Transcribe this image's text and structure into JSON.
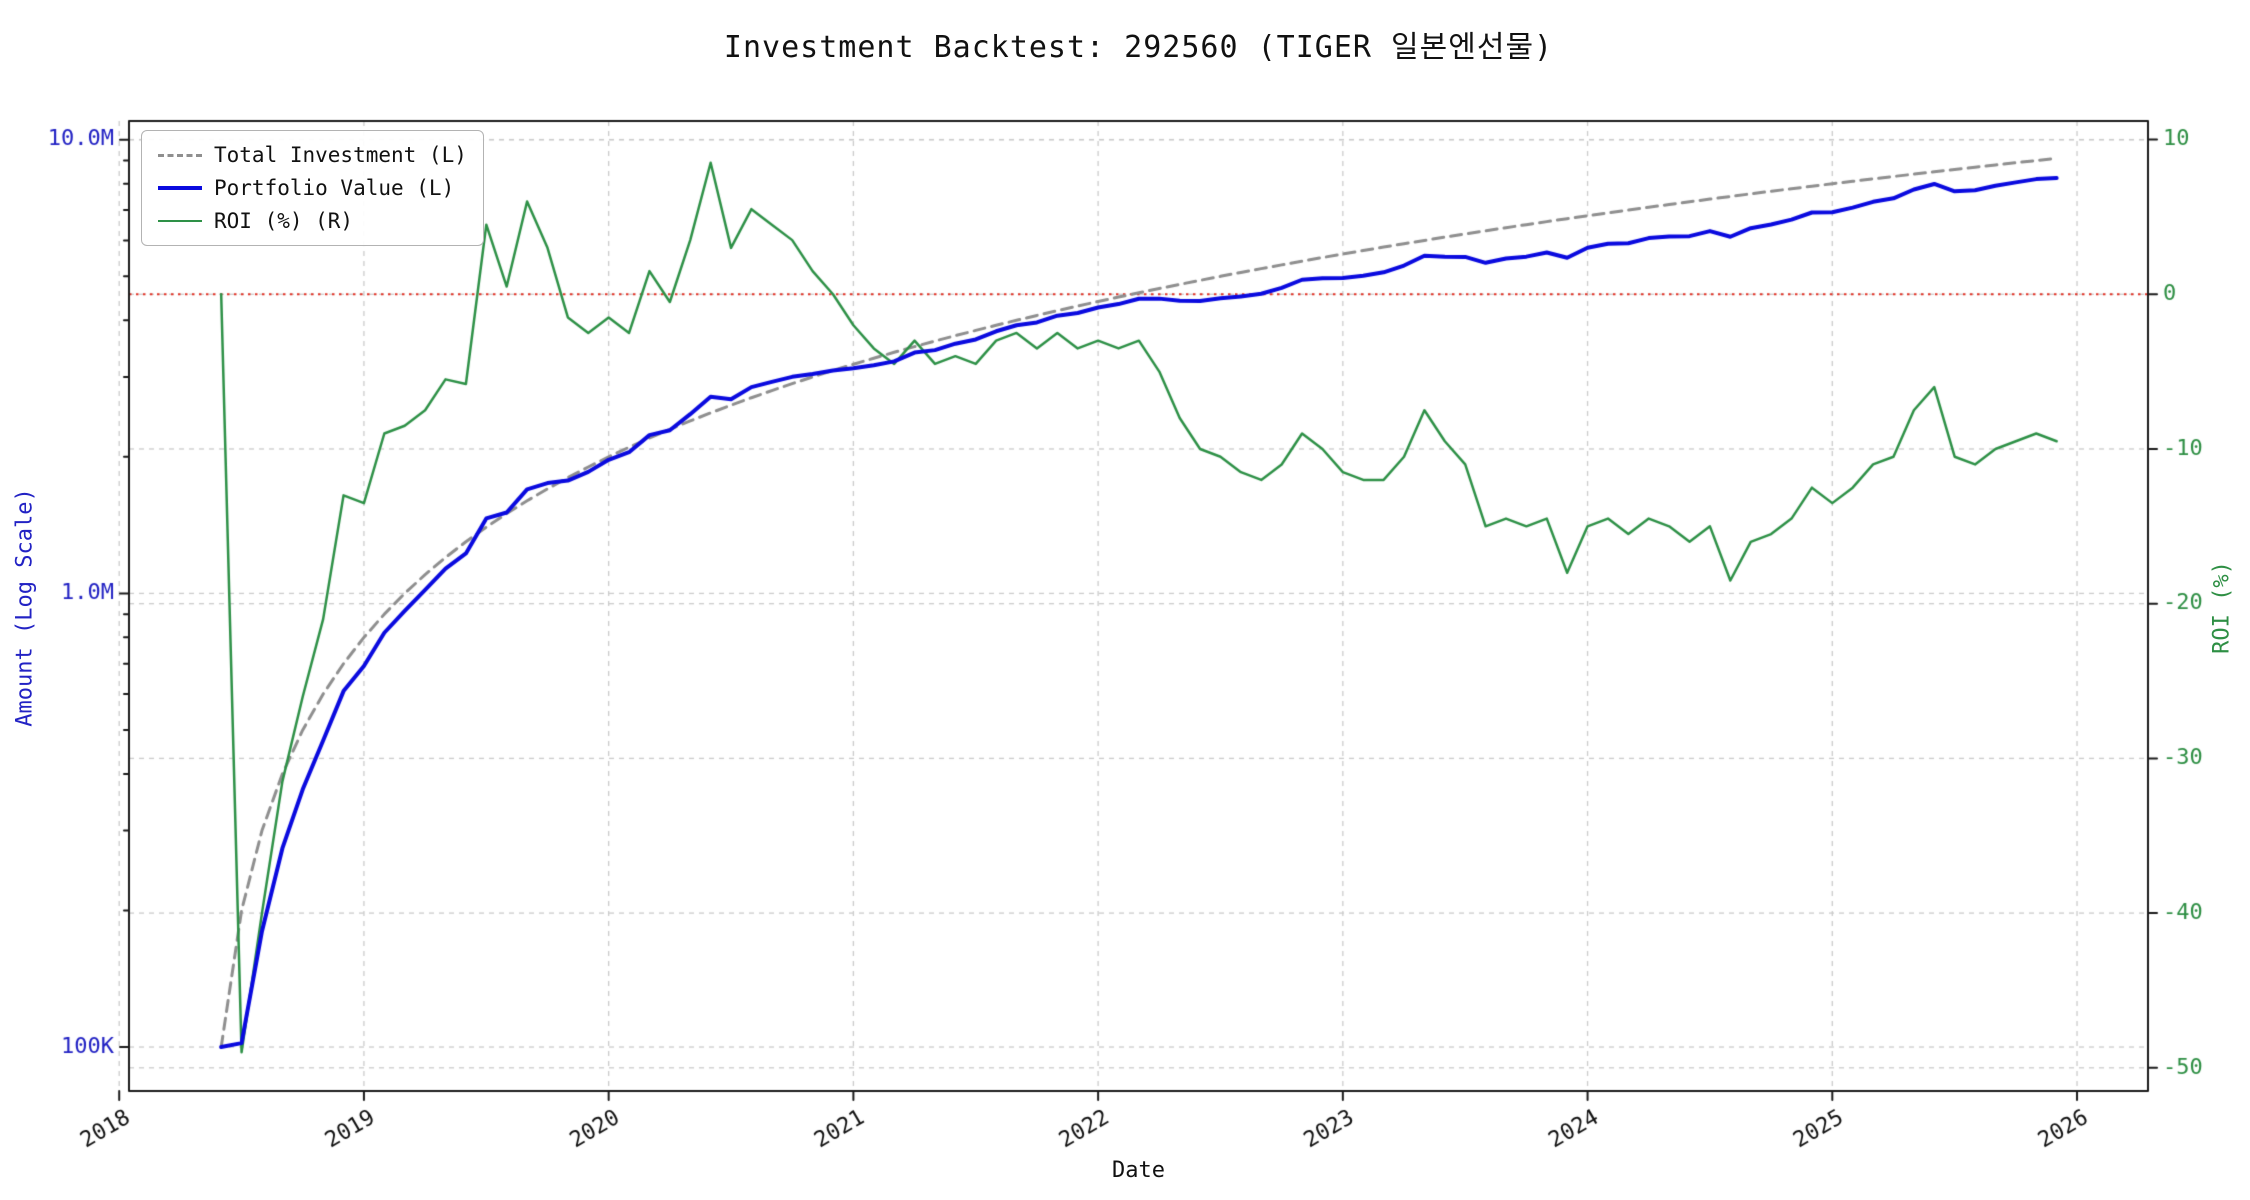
{
  "chart_data": {
    "type": "line",
    "title": "Investment Backtest: 292560 (TIGER 일본엔선물)",
    "xlabel": "Date",
    "ylabel_left": "Amount (Log Scale)",
    "ylabel_right": "ROI (%)",
    "x_range": [
      2018.04,
      2026.29
    ],
    "x_tick_values": [
      2018,
      2019,
      2020,
      2021,
      2022,
      2023,
      2024,
      2025,
      2026
    ],
    "x_tick_labels": [
      "2018",
      "2019",
      "2020",
      "2021",
      "2022",
      "2023",
      "2024",
      "2025",
      "2026"
    ],
    "left_axis": {
      "scale": "log",
      "range_millions": [
        0.08,
        11
      ],
      "ticks": [
        {
          "label": "10.0M",
          "value": 10.0
        },
        {
          "label": "1.0M",
          "value": 1.0
        },
        {
          "label": "100K",
          "value": 0.1
        }
      ]
    },
    "right_axis": {
      "range": [
        -51.5,
        11.2
      ],
      "ticks": [
        {
          "label": "10",
          "value": 10
        },
        {
          "label": "0",
          "value": 0
        },
        {
          "label": "-10",
          "value": -10
        },
        {
          "label": "-20",
          "value": -20
        },
        {
          "label": "-30",
          "value": -30
        },
        {
          "label": "-40",
          "value": -40
        },
        {
          "label": "-50",
          "value": -50
        }
      ]
    },
    "zero_line": {
      "value": 0,
      "axis": "right",
      "color": "#e03125",
      "style": "dotted"
    },
    "grid": {
      "on": true,
      "color": "#cccccc",
      "style": "dashed"
    },
    "legend_position": "upper-left",
    "months": [
      "2018-05",
      "2018-06",
      "2018-07",
      "2018-08",
      "2018-09",
      "2018-10",
      "2018-11",
      "2018-12",
      "2019-01",
      "2019-02",
      "2019-03",
      "2019-04",
      "2019-05",
      "2019-06",
      "2019-07",
      "2019-08",
      "2019-09",
      "2019-10",
      "2019-11",
      "2019-12",
      "2020-01",
      "2020-02",
      "2020-03",
      "2020-04",
      "2020-05",
      "2020-06",
      "2020-07",
      "2020-08",
      "2020-09",
      "2020-10",
      "2020-11",
      "2020-12",
      "2021-01",
      "2021-02",
      "2021-03",
      "2021-04",
      "2021-05",
      "2021-06",
      "2021-07",
      "2021-08",
      "2021-09",
      "2021-10",
      "2021-11",
      "2021-12",
      "2022-01",
      "2022-02",
      "2022-03",
      "2022-04",
      "2022-05",
      "2022-06",
      "2022-07",
      "2022-08",
      "2022-09",
      "2022-10",
      "2022-11",
      "2022-12",
      "2023-01",
      "2023-02",
      "2023-03",
      "2023-04",
      "2023-05",
      "2023-06",
      "2023-07",
      "2023-08",
      "2023-09",
      "2023-10",
      "2023-11",
      "2023-12",
      "2024-01",
      "2024-02",
      "2024-03",
      "2024-04",
      "2024-05",
      "2024-06",
      "2024-07",
      "2024-08",
      "2024-09",
      "2024-10",
      "2024-11",
      "2024-12",
      "2025-01",
      "2025-02",
      "2025-03",
      "2025-04",
      "2025-05",
      "2025-06",
      "2025-07",
      "2025-08",
      "2025-09",
      "2025-10",
      "2025-11"
    ],
    "series": [
      {
        "name": "Total Investment (L)",
        "axis": "left",
        "style": "dashed",
        "color": "#8f8f8f",
        "lw": 3,
        "values_millions": [
          0.1,
          0.2,
          0.3,
          0.4,
          0.5,
          0.6,
          0.7,
          0.8,
          0.9,
          1.0,
          1.1,
          1.2,
          1.3,
          1.4,
          1.5,
          1.6,
          1.7,
          1.8,
          1.9,
          2.0,
          2.1,
          2.2,
          2.3,
          2.4,
          2.5,
          2.6,
          2.7,
          2.8,
          2.9,
          3.0,
          3.1,
          3.2,
          3.3,
          3.4,
          3.5,
          3.6,
          3.7,
          3.8,
          3.9,
          4.0,
          4.1,
          4.2,
          4.3,
          4.4,
          4.5,
          4.6,
          4.7,
          4.8,
          4.9,
          5.0,
          5.1,
          5.2,
          5.3,
          5.4,
          5.5,
          5.6,
          5.7,
          5.8,
          5.9,
          6.0,
          6.1,
          6.2,
          6.3,
          6.4,
          6.5,
          6.6,
          6.7,
          6.8,
          6.9,
          7.0,
          7.1,
          7.2,
          7.3,
          7.4,
          7.5,
          7.6,
          7.7,
          7.8,
          7.9,
          8.0,
          8.1,
          8.2,
          8.3,
          8.4,
          8.5,
          8.6,
          8.7,
          8.8,
          8.9,
          9.0,
          9.1
        ]
      },
      {
        "name": "Portfolio Value (L)",
        "axis": "left",
        "style": "solid",
        "color": "#0a0adf",
        "lw": 4,
        "values_millions": [
          0.1,
          0.102,
          0.18,
          0.274,
          0.37,
          0.474,
          0.609,
          0.692,
          0.819,
          0.915,
          1.018,
          1.134,
          1.225,
          1.463,
          1.508,
          1.696,
          1.751,
          1.773,
          1.853,
          1.97,
          2.048,
          2.233,
          2.289,
          2.484,
          2.713,
          2.678,
          2.849,
          2.926,
          3.002,
          3.045,
          3.1,
          3.136,
          3.185,
          3.247,
          3.395,
          3.438,
          3.552,
          3.629,
          3.783,
          3.9,
          3.957,
          4.095,
          4.15,
          4.268,
          4.343,
          4.462,
          4.465,
          4.416,
          4.41,
          4.475,
          4.514,
          4.576,
          4.717,
          4.914,
          4.95,
          4.956,
          5.016,
          5.104,
          5.281,
          5.55,
          5.521,
          5.518,
          5.355,
          5.472,
          5.525,
          5.643,
          5.494,
          5.78,
          5.9,
          5.915,
          6.071,
          6.12,
          6.132,
          6.29,
          6.113,
          6.384,
          6.507,
          6.669,
          6.913,
          6.92,
          7.088,
          7.298,
          7.429,
          7.77,
          7.99,
          7.697,
          7.743,
          7.92,
          8.055,
          8.19,
          8.236
        ]
      },
      {
        "name": "ROI (%) (R)",
        "axis": "right",
        "style": "solid",
        "color": "#2e9147",
        "lw": 2.5,
        "values_percent": [
          0,
          -49,
          -40,
          -31.5,
          -26,
          -21,
          -13,
          -13.5,
          -9,
          -8.5,
          -7.5,
          -5.5,
          -5.8,
          4.5,
          0.5,
          6,
          3,
          -1.5,
          -2.5,
          -1.5,
          -2.5,
          1.5,
          -0.5,
          3.5,
          8.5,
          3,
          5.5,
          4.5,
          3.5,
          1.5,
          0,
          -2,
          -3.5,
          -4.5,
          -3,
          -4.5,
          -4,
          -4.5,
          -3,
          -2.5,
          -3.5,
          -2.5,
          -3.5,
          -3,
          -3.5,
          -3,
          -5,
          -8,
          -10,
          -10.5,
          -11.5,
          -12,
          -11,
          -9,
          -10,
          -11.5,
          -12,
          -12,
          -10.5,
          -7.5,
          -9.5,
          -11,
          -15,
          -14.5,
          -15,
          -14.5,
          -18,
          -15,
          -14.5,
          -15.5,
          -14.5,
          -15,
          -16,
          -15,
          -18.5,
          -16,
          -15.5,
          -14.5,
          -12.5,
          -13.5,
          -12.5,
          -11,
          -10.5,
          -7.5,
          -6,
          -10.5,
          -11,
          -10,
          -9.5,
          -9,
          -9.5
        ]
      }
    ],
    "colors": {
      "left_axis_text": "#2222c4",
      "right_axis_text": "#2e8f44",
      "x_axis_text": "#111111",
      "grid": "#cccccc",
      "axis_border": "#1a1a1a",
      "background": "#ffffff"
    }
  }
}
